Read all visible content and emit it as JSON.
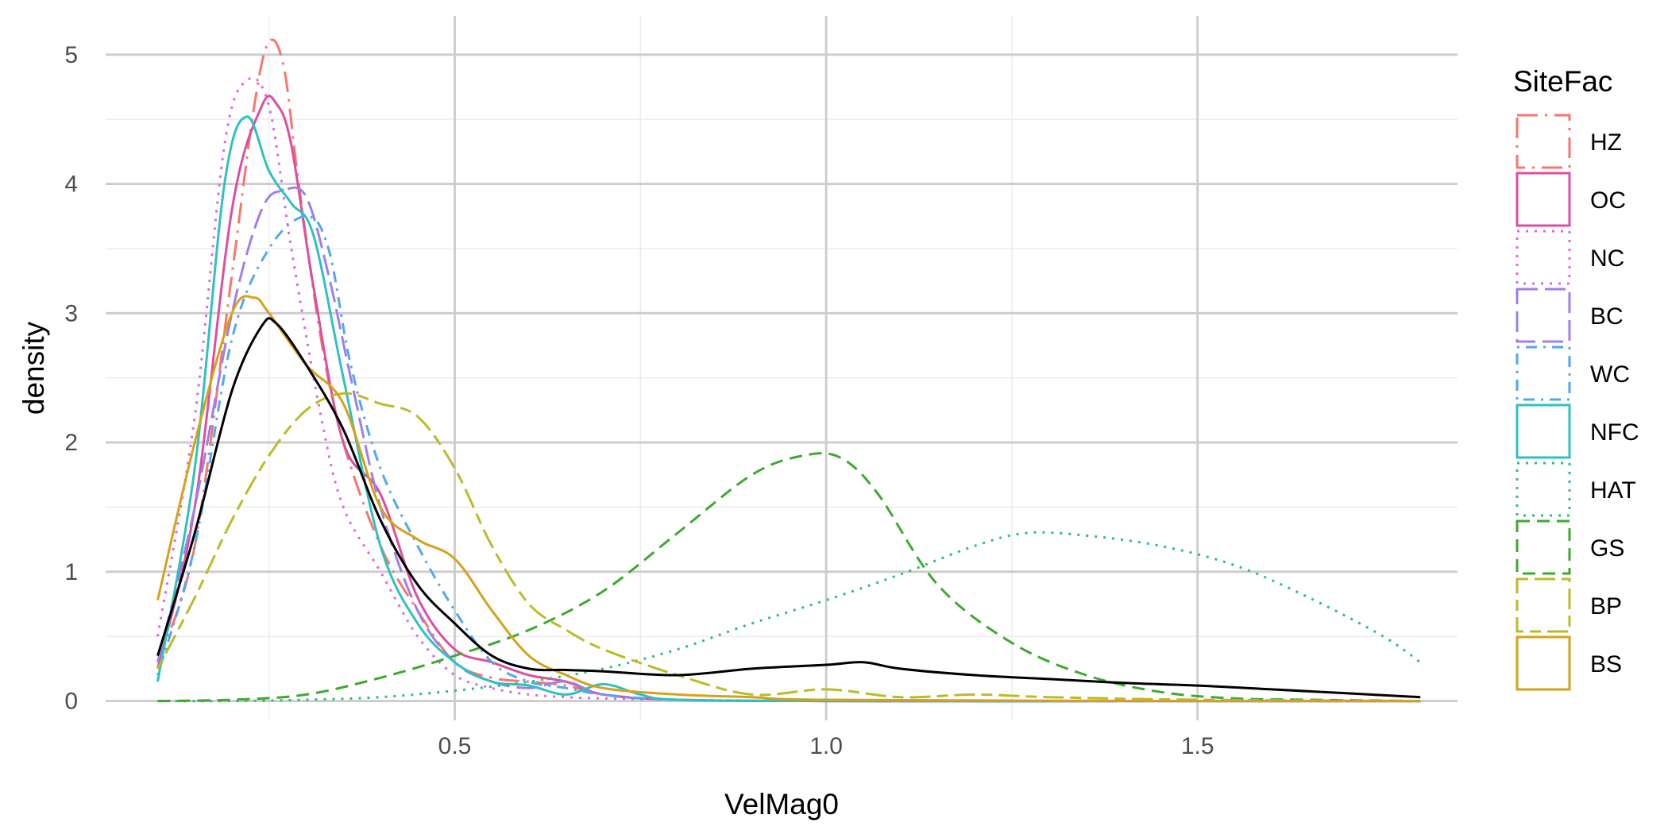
{
  "chart_data": {
    "type": "line",
    "xlabel": "VelMag0",
    "ylabel": "density",
    "xlim": [
      0.03,
      1.85
    ],
    "ylim": [
      -0.15,
      5.3
    ],
    "x_ticks": [
      0.5,
      1.0,
      1.5
    ],
    "x_tick_labels": [
      "0.5",
      "1.0",
      "1.5"
    ],
    "y_ticks": [
      0,
      1,
      2,
      3,
      4,
      5
    ],
    "y_tick_labels": [
      "0",
      "1",
      "2",
      "3",
      "4",
      "5"
    ],
    "grid": true,
    "legend": {
      "title": "SiteFac",
      "position": "right",
      "entries": [
        "HZ",
        "OC",
        "NC",
        "BC",
        "WC",
        "NFC",
        "HAT",
        "GS",
        "BP",
        "BS"
      ]
    },
    "series": [
      {
        "name": "HZ",
        "color": "#F8766D",
        "dash": "longdash-dot",
        "x": [
          0.1,
          0.15,
          0.2,
          0.23,
          0.25,
          0.27,
          0.29,
          0.32,
          0.35,
          0.4,
          0.45,
          0.5,
          0.55,
          0.6,
          0.65,
          0.7,
          0.8,
          1.0,
          1.5,
          1.8
        ],
        "y": [
          0.3,
          1.2,
          3.3,
          4.6,
          5.1,
          4.9,
          4.0,
          2.8,
          2.0,
          1.2,
          0.7,
          0.3,
          0.18,
          0.15,
          0.12,
          0.05,
          0.01,
          0,
          0,
          0
        ]
      },
      {
        "name": "OC",
        "color": "#DB4FA0",
        "dash": "solid",
        "x": [
          0.1,
          0.15,
          0.2,
          0.24,
          0.26,
          0.28,
          0.31,
          0.35,
          0.4,
          0.45,
          0.5,
          0.55,
          0.6,
          0.65,
          0.7,
          0.8,
          1.0,
          1.5,
          1.8
        ],
        "y": [
          0.25,
          1.5,
          3.8,
          4.6,
          4.62,
          4.3,
          3.2,
          2.0,
          1.6,
          0.8,
          0.4,
          0.3,
          0.2,
          0.15,
          0.05,
          0.01,
          0,
          0,
          0
        ]
      },
      {
        "name": "NC",
        "color": "#E264E0",
        "dash": "dotted",
        "x": [
          0.1,
          0.15,
          0.19,
          0.22,
          0.25,
          0.28,
          0.32,
          0.35,
          0.4,
          0.45,
          0.5,
          0.55,
          0.6,
          0.65,
          0.7,
          0.8,
          1.0,
          1.5,
          1.8
        ],
        "y": [
          0.5,
          2.2,
          4.3,
          4.8,
          4.6,
          3.5,
          2.2,
          1.5,
          1.0,
          0.5,
          0.2,
          0.1,
          0.05,
          0.03,
          0.02,
          0.01,
          0,
          0,
          0
        ]
      },
      {
        "name": "BC",
        "color": "#9F7FE8",
        "dash": "longdash",
        "x": [
          0.1,
          0.15,
          0.2,
          0.24,
          0.27,
          0.3,
          0.33,
          0.36,
          0.4,
          0.45,
          0.5,
          0.55,
          0.6,
          0.65,
          0.7,
          0.8,
          1.0,
          1.5,
          1.8
        ],
        "y": [
          0.3,
          1.5,
          3.0,
          3.8,
          3.95,
          3.9,
          3.3,
          2.5,
          1.5,
          0.7,
          0.3,
          0.15,
          0.1,
          0.15,
          0.05,
          0.01,
          0,
          0,
          0
        ]
      },
      {
        "name": "WC",
        "color": "#52A7F1",
        "dash": "dotdash",
        "x": [
          0.1,
          0.15,
          0.2,
          0.25,
          0.3,
          0.33,
          0.36,
          0.4,
          0.45,
          0.5,
          0.55,
          0.6,
          0.65,
          0.7,
          0.8,
          1.0,
          1.5,
          1.8
        ],
        "y": [
          0.2,
          1.2,
          2.8,
          3.5,
          3.75,
          3.5,
          2.6,
          1.8,
          1.2,
          0.7,
          0.3,
          0.15,
          0.1,
          0.05,
          0.01,
          0,
          0,
          0
        ]
      },
      {
        "name": "NFC",
        "color": "#2DC2C0",
        "dash": "solid",
        "x": [
          0.1,
          0.15,
          0.19,
          0.22,
          0.25,
          0.28,
          0.31,
          0.35,
          0.4,
          0.45,
          0.5,
          0.55,
          0.6,
          0.65,
          0.7,
          0.75,
          0.8,
          1.0,
          1.5,
          1.8
        ],
        "y": [
          0.15,
          1.8,
          4.0,
          4.52,
          4.1,
          3.85,
          3.6,
          2.5,
          1.2,
          0.6,
          0.3,
          0.15,
          0.12,
          0.05,
          0.13,
          0.05,
          0.01,
          0,
          0,
          0
        ]
      },
      {
        "name": "HAT",
        "color": "#2CC07A",
        "dash": "dotted",
        "x": [
          0.1,
          0.2,
          0.3,
          0.4,
          0.5,
          0.6,
          0.7,
          0.8,
          0.9,
          1.0,
          1.1,
          1.2,
          1.27,
          1.35,
          1.45,
          1.55,
          1.65,
          1.75,
          1.8
        ],
        "y": [
          0,
          0,
          0.01,
          0.03,
          0.08,
          0.15,
          0.25,
          0.4,
          0.6,
          0.78,
          0.98,
          1.2,
          1.3,
          1.28,
          1.2,
          1.05,
          0.8,
          0.5,
          0.3
        ]
      },
      {
        "name": "GS",
        "color": "#3DAA2E",
        "dash": "dashed",
        "x": [
          0.1,
          0.2,
          0.3,
          0.4,
          0.5,
          0.6,
          0.7,
          0.8,
          0.9,
          0.97,
          1.02,
          1.07,
          1.15,
          1.25,
          1.35,
          1.45,
          1.55,
          1.65,
          1.8
        ],
        "y": [
          0,
          0.01,
          0.05,
          0.18,
          0.35,
          0.55,
          0.85,
          1.3,
          1.75,
          1.9,
          1.88,
          1.6,
          0.9,
          0.45,
          0.2,
          0.07,
          0.02,
          0.01,
          0
        ]
      },
      {
        "name": "BP",
        "color": "#BBBB2A",
        "dash": "twodash",
        "x": [
          0.1,
          0.15,
          0.2,
          0.25,
          0.3,
          0.35,
          0.4,
          0.45,
          0.5,
          0.55,
          0.6,
          0.65,
          0.7,
          0.8,
          0.9,
          1.0,
          1.1,
          1.2,
          1.3,
          1.5,
          1.8
        ],
        "y": [
          0.25,
          0.8,
          1.4,
          1.9,
          2.25,
          2.38,
          2.3,
          2.2,
          1.8,
          1.2,
          0.75,
          0.55,
          0.4,
          0.2,
          0.05,
          0.09,
          0.03,
          0.05,
          0.03,
          0.01,
          0
        ]
      },
      {
        "name": "BS",
        "color": "#D5A21A",
        "dash": "solid",
        "x": [
          0.1,
          0.15,
          0.2,
          0.23,
          0.25,
          0.3,
          0.35,
          0.4,
          0.45,
          0.5,
          0.55,
          0.6,
          0.65,
          0.7,
          0.8,
          0.9,
          1.0,
          1.5,
          1.8
        ],
        "y": [
          0.78,
          2.0,
          3.0,
          3.12,
          3.0,
          2.6,
          2.3,
          1.5,
          1.25,
          1.1,
          0.7,
          0.35,
          0.2,
          0.1,
          0.05,
          0.03,
          0.01,
          0,
          0
        ]
      },
      {
        "name": "",
        "color": "#000000",
        "dash": "solid",
        "x": [
          0.1,
          0.15,
          0.2,
          0.24,
          0.26,
          0.3,
          0.35,
          0.4,
          0.45,
          0.5,
          0.55,
          0.6,
          0.65,
          0.7,
          0.8,
          0.9,
          1.0,
          1.05,
          1.1,
          1.2,
          1.3,
          1.4,
          1.5,
          1.6,
          1.7,
          1.8
        ],
        "y": [
          0.35,
          1.3,
          2.4,
          2.9,
          2.92,
          2.6,
          2.1,
          1.4,
          0.9,
          0.6,
          0.35,
          0.25,
          0.24,
          0.23,
          0.2,
          0.25,
          0.28,
          0.3,
          0.25,
          0.2,
          0.17,
          0.14,
          0.12,
          0.09,
          0.06,
          0.03
        ]
      }
    ]
  }
}
